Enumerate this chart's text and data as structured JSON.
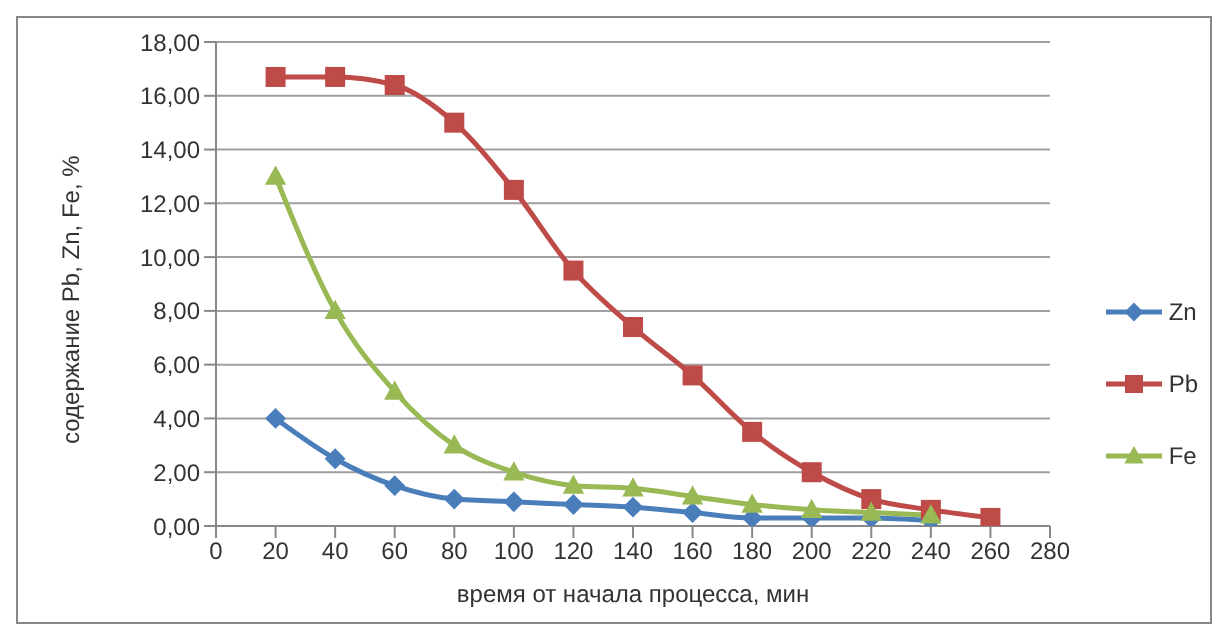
{
  "chart_data": {
    "type": "line",
    "xlabel": "время от начала процесса, мин",
    "ylabel": "содержание Pb, Zn, Fe, %",
    "x": [
      20,
      40,
      60,
      80,
      100,
      120,
      140,
      160,
      180,
      200,
      220,
      240,
      260
    ],
    "series": [
      {
        "name": "Zn",
        "color": "#4a7ebb",
        "marker": "diamond",
        "values": [
          4.0,
          2.5,
          1.5,
          1.0,
          0.9,
          0.8,
          0.7,
          0.5,
          0.3,
          0.3,
          0.3,
          0.2,
          null
        ]
      },
      {
        "name": "Pb",
        "color": "#be4b48",
        "marker": "square",
        "values": [
          16.7,
          16.7,
          16.4,
          15.0,
          12.5,
          9.5,
          7.4,
          5.6,
          3.5,
          2.0,
          1.0,
          0.6,
          0.3
        ]
      },
      {
        "name": "Fe",
        "color": "#98b954",
        "marker": "triangle",
        "values": [
          13.0,
          8.0,
          5.0,
          3.0,
          2.0,
          1.5,
          1.4,
          1.1,
          0.8,
          0.6,
          0.5,
          0.4,
          null
        ]
      }
    ],
    "xlim": [
      0,
      280
    ],
    "xticks": [
      0,
      20,
      40,
      60,
      80,
      100,
      120,
      140,
      160,
      180,
      200,
      220,
      240,
      260,
      280
    ],
    "ylim": [
      0,
      18
    ],
    "yticks": [
      {
        "value": 0,
        "label": "0,00"
      },
      {
        "value": 2,
        "label": "2,00"
      },
      {
        "value": 4,
        "label": "4,00"
      },
      {
        "value": 6,
        "label": "6,00"
      },
      {
        "value": 8,
        "label": "8,00"
      },
      {
        "value": 10,
        "label": "10,00"
      },
      {
        "value": 12,
        "label": "12,00"
      },
      {
        "value": 14,
        "label": "14,00"
      },
      {
        "value": 16,
        "label": "16,00"
      },
      {
        "value": 18,
        "label": "18,00"
      }
    ],
    "grid": "y",
    "legend": "right",
    "line_style": "solid"
  }
}
